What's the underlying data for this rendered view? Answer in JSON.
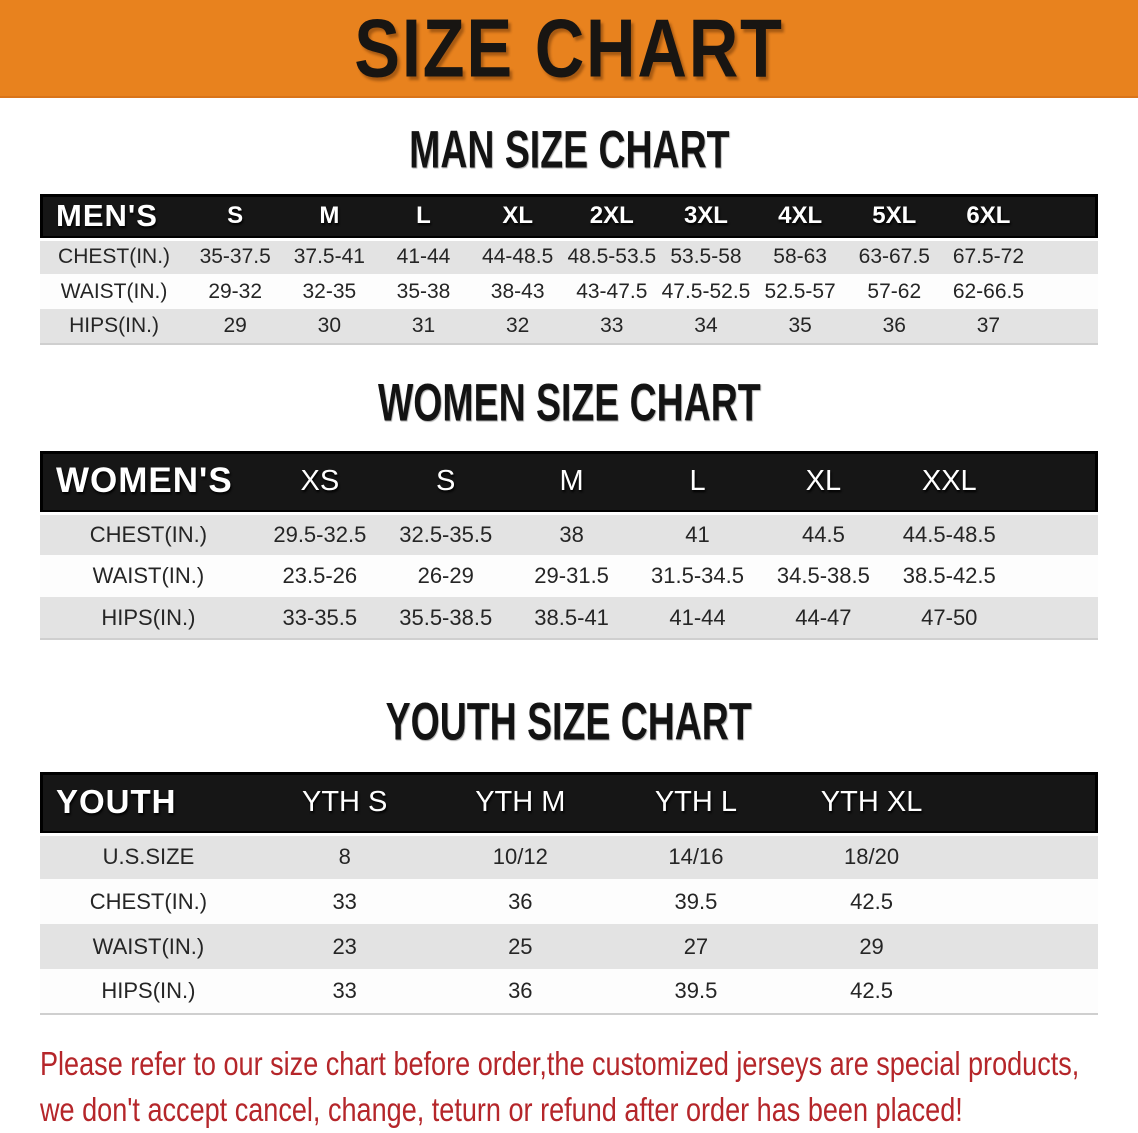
{
  "banner": {
    "title": "SIZE CHART",
    "bg_color": "#e8821e",
    "text_color": "#181512"
  },
  "sections": [
    {
      "heading": "MAN SIZE CHART",
      "header_label": "MEN'S",
      "columns": [
        "S",
        "M",
        "L",
        "XL",
        "2XL",
        "3XL",
        "4XL",
        "5XL",
        "6XL"
      ],
      "rows": [
        {
          "label": "CHEST(IN.)",
          "values": [
            "35-37.5",
            "37.5-41",
            "41-44",
            "44-48.5",
            "48.5-53.5",
            "53.5-58",
            "58-63",
            "63-67.5",
            "67.5-72"
          ]
        },
        {
          "label": "WAIST(IN.)",
          "values": [
            "29-32",
            "32-35",
            "35-38",
            "38-43",
            "43-47.5",
            "47.5-52.5",
            "52.5-57",
            "57-62",
            "62-66.5"
          ]
        },
        {
          "label": "HIPS(IN.)",
          "values": [
            "29",
            "30",
            "31",
            "32",
            "33",
            "34",
            "35",
            "36",
            "37"
          ]
        }
      ]
    },
    {
      "heading": "WOMEN SIZE CHART",
      "header_label": "WOMEN'S",
      "columns": [
        "XS",
        "S",
        "M",
        "L",
        "XL",
        "XXL"
      ],
      "rows": [
        {
          "label": "CHEST(IN.)",
          "values": [
            "29.5-32.5",
            "32.5-35.5",
            "38",
            "41",
            "44.5",
            "44.5-48.5"
          ]
        },
        {
          "label": "WAIST(IN.)",
          "values": [
            "23.5-26",
            "26-29",
            "29-31.5",
            "31.5-34.5",
            "34.5-38.5",
            "38.5-42.5"
          ]
        },
        {
          "label": "HIPS(IN.)",
          "values": [
            "33-35.5",
            "35.5-38.5",
            "38.5-41",
            "41-44",
            "44-47",
            "47-50"
          ]
        }
      ]
    },
    {
      "heading": "YOUTH SIZE CHART",
      "header_label": "YOUTH",
      "columns": [
        "YTH S",
        "YTH M",
        "YTH L",
        "YTH XL"
      ],
      "rows": [
        {
          "label": "U.S.SIZE",
          "values": [
            "8",
            "10/12",
            "14/16",
            "18/20"
          ]
        },
        {
          "label": "CHEST(IN.)",
          "values": [
            "33",
            "36",
            "39.5",
            "42.5"
          ]
        },
        {
          "label": "WAIST(IN.)",
          "values": [
            "23",
            "25",
            "27",
            "29"
          ]
        },
        {
          "label": "HIPS(IN.)",
          "values": [
            "33",
            "36",
            "39.5",
            "42.5"
          ]
        }
      ]
    }
  ],
  "disclaimer": {
    "line1": "Please refer to our size chart before order,the customized jerseys are special products,",
    "line2": "we don't accept cancel, change, teturn or refund after order has been placed!",
    "color": "#b5262a"
  }
}
